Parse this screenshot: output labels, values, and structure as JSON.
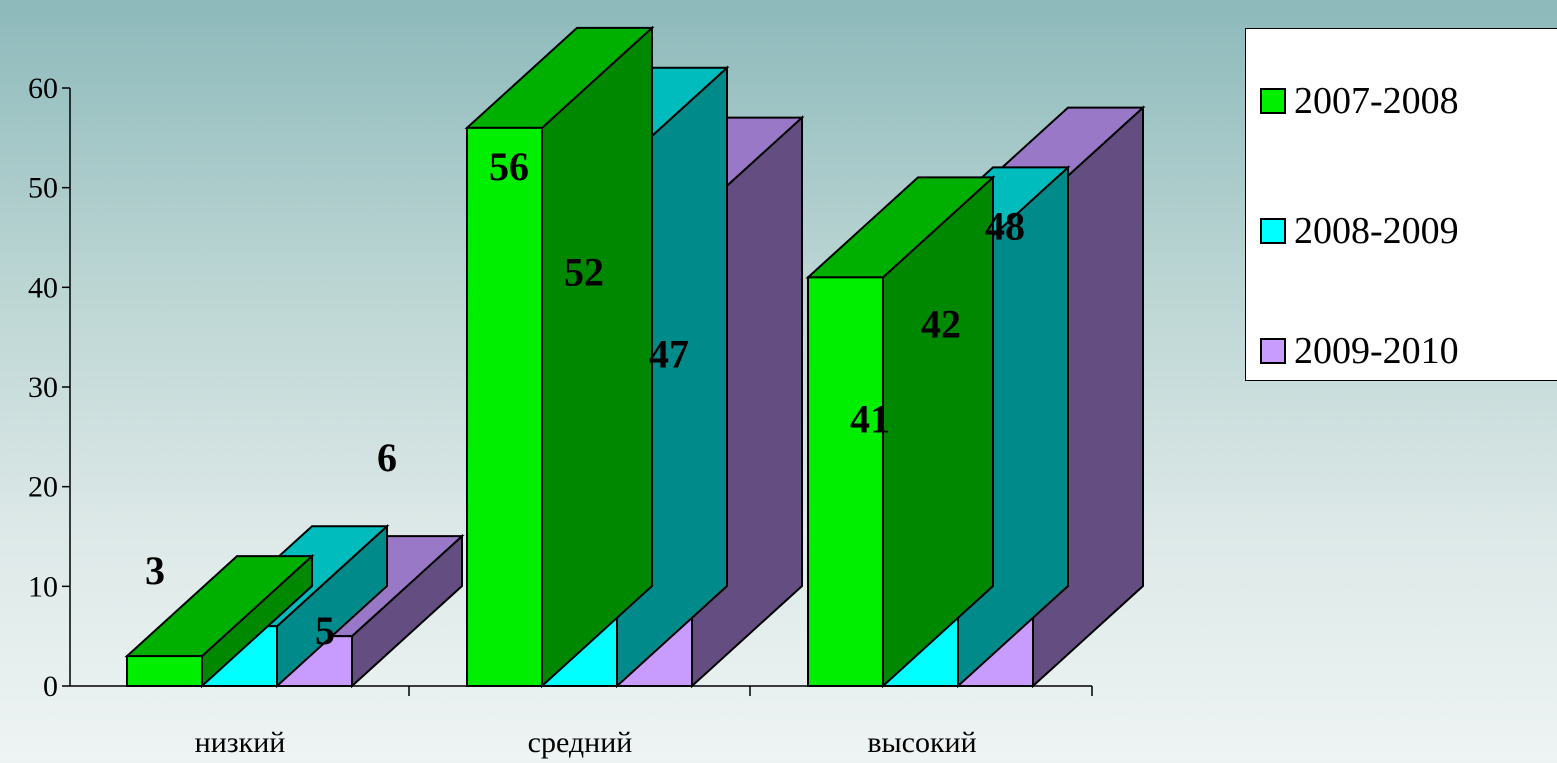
{
  "chart_data": {
    "type": "bar",
    "categories": [
      "низкий",
      "средний",
      "высокий"
    ],
    "series": [
      {
        "name": "2007-2008",
        "values": [
          3,
          56,
          41
        ],
        "color": "#00ee00",
        "top_color": "#00b000",
        "side_color": "#008800"
      },
      {
        "name": "2008-2009",
        "values": [
          6,
          52,
          42
        ],
        "color": "#00ffff",
        "top_color": "#00bcbc",
        "side_color": "#008a8a"
      },
      {
        "name": "2009-2010",
        "values": [
          5,
          47,
          48
        ],
        "color": "#c89cff",
        "top_color": "#9a78c8",
        "side_color": "#644d80"
      }
    ],
    "ylim": [
      0,
      60
    ],
    "yticks": [
      "0",
      "10",
      "20",
      "30",
      "40",
      "50",
      "60"
    ],
    "xlabel": "",
    "ylabel": "",
    "title": "",
    "grid": false,
    "legend_position": "top-right",
    "style": "3d-bar"
  }
}
